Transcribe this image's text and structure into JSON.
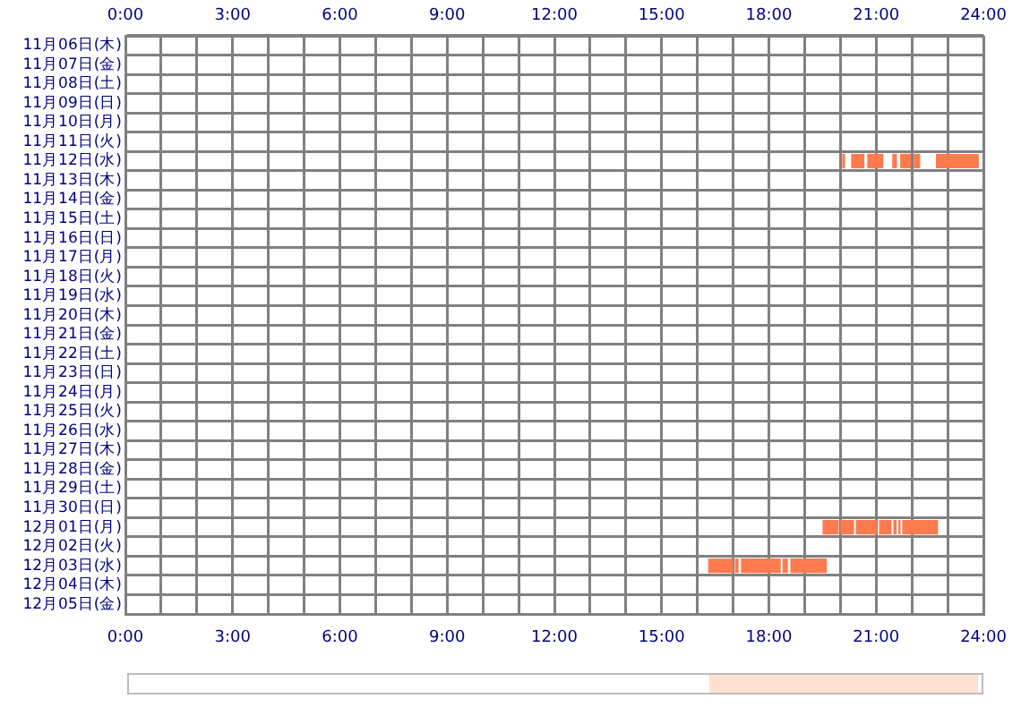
{
  "chart_data": {
    "type": "bar",
    "orientation": "horizontal",
    "grid": true,
    "legend": false,
    "categories": [
      "11月06日(木)",
      "11月07日(金)",
      "11月08日(土)",
      "11月09日(日)",
      "11月10日(月)",
      "11月11日(火)",
      "11月12日(水)",
      "11月13日(木)",
      "11月14日(金)",
      "11月15日(土)",
      "11月16日(日)",
      "11月17日(月)",
      "11月18日(火)",
      "11月19日(水)",
      "11月20日(木)",
      "11月21日(金)",
      "11月22日(土)",
      "11月23日(日)",
      "11月24日(月)",
      "11月25日(火)",
      "11月26日(水)",
      "11月27日(木)",
      "11月28日(金)",
      "11月29日(土)",
      "11月30日(日)",
      "12月01日(月)",
      "12月02日(火)",
      "12月03日(水)",
      "12月04日(木)",
      "12月05日(金)"
    ],
    "xlim": [
      0,
      24
    ],
    "xticks": [
      {
        "value": 0,
        "label": "0:00"
      },
      {
        "value": 1,
        "label": null
      },
      {
        "value": 2,
        "label": null
      },
      {
        "value": 3,
        "label": "3:00"
      },
      {
        "value": 4,
        "label": null
      },
      {
        "value": 5,
        "label": null
      },
      {
        "value": 6,
        "label": "6:00"
      },
      {
        "value": 7,
        "label": null
      },
      {
        "value": 8,
        "label": null
      },
      {
        "value": 9,
        "label": "9:00"
      },
      {
        "value": 10,
        "label": null
      },
      {
        "value": 11,
        "label": null
      },
      {
        "value": 12,
        "label": "12:00"
      },
      {
        "value": 13,
        "label": null
      },
      {
        "value": 14,
        "label": null
      },
      {
        "value": 15,
        "label": "15:00"
      },
      {
        "value": 16,
        "label": null
      },
      {
        "value": 17,
        "label": null
      },
      {
        "value": 18,
        "label": "18:00"
      },
      {
        "value": 19,
        "label": null
      },
      {
        "value": 20,
        "label": null
      },
      {
        "value": 21,
        "label": "21:00"
      },
      {
        "value": 22,
        "label": null
      },
      {
        "value": 23,
        "label": null
      },
      {
        "value": 24,
        "label": "24:00"
      }
    ],
    "x2lim": [
      0,
      24
    ],
    "x2ticks": [
      {
        "value": 0,
        "label": "0:00"
      },
      {
        "value": 3,
        "label": "3:00"
      },
      {
        "value": 6,
        "label": "6:00"
      },
      {
        "value": 9,
        "label": "9:00"
      },
      {
        "value": 12,
        "label": "12:00"
      },
      {
        "value": 15,
        "label": "15:00"
      },
      {
        "value": 18,
        "label": "18:00"
      },
      {
        "value": 21,
        "label": "21:00"
      },
      {
        "value": 24,
        "label": "24:00"
      }
    ],
    "series": [
      {
        "color": "#ff7a4d",
        "base": [
          null,
          null,
          null,
          null,
          null,
          null,
          20.05,
          null,
          null,
          null,
          null,
          null,
          null,
          null,
          null,
          null,
          null,
          null,
          null,
          null,
          null,
          null,
          null,
          null,
          null,
          19.5,
          null,
          16.3,
          null,
          null
        ],
        "values": [
          null,
          null,
          null,
          null,
          null,
          null,
          0.08,
          null,
          null,
          null,
          null,
          null,
          null,
          null,
          null,
          null,
          null,
          null,
          null,
          null,
          null,
          null,
          null,
          null,
          null,
          0.45,
          null,
          0.7,
          null,
          null
        ]
      },
      {
        "color": "#ff7a4d",
        "base": [
          null,
          null,
          null,
          null,
          null,
          null,
          20.3,
          null,
          null,
          null,
          null,
          null,
          null,
          null,
          null,
          null,
          null,
          null,
          null,
          null,
          null,
          null,
          null,
          null,
          null,
          20,
          null,
          17.05,
          null,
          null
        ],
        "values": [
          null,
          null,
          null,
          null,
          null,
          null,
          0.37,
          null,
          null,
          null,
          null,
          null,
          null,
          null,
          null,
          null,
          null,
          null,
          null,
          null,
          null,
          null,
          null,
          null,
          null,
          0.38,
          null,
          0.1,
          null,
          null
        ]
      },
      {
        "color": "#ff7a4d",
        "base": [
          null,
          null,
          null,
          null,
          null,
          null,
          20.75,
          null,
          null,
          null,
          null,
          null,
          null,
          null,
          null,
          null,
          null,
          null,
          null,
          null,
          null,
          null,
          null,
          null,
          null,
          20.43,
          null,
          17.22,
          null,
          null
        ],
        "values": [
          null,
          null,
          null,
          null,
          null,
          null,
          0.45,
          null,
          null,
          null,
          null,
          null,
          null,
          null,
          null,
          null,
          null,
          null,
          null,
          null,
          null,
          null,
          null,
          null,
          null,
          0.59,
          null,
          1.11,
          null,
          null
        ]
      },
      {
        "color": "#ff7a4d",
        "base": [
          null,
          null,
          null,
          null,
          null,
          null,
          21.45,
          null,
          null,
          null,
          null,
          null,
          null,
          null,
          null,
          null,
          null,
          null,
          null,
          null,
          null,
          null,
          null,
          null,
          null,
          21.08,
          null,
          18.38,
          null,
          null
        ],
        "values": [
          null,
          null,
          null,
          null,
          null,
          null,
          0.13,
          null,
          null,
          null,
          null,
          null,
          null,
          null,
          null,
          null,
          null,
          null,
          null,
          null,
          null,
          null,
          null,
          null,
          null,
          0.35,
          null,
          0.15,
          null,
          null
        ]
      },
      {
        "color": "#ff7a4d",
        "base": [
          null,
          null,
          null,
          null,
          null,
          null,
          21.67,
          null,
          null,
          null,
          null,
          null,
          null,
          null,
          null,
          null,
          null,
          null,
          null,
          null,
          null,
          null,
          null,
          null,
          null,
          21.48,
          null,
          18.6,
          null,
          null
        ],
        "values": [
          null,
          null,
          null,
          null,
          null,
          null,
          0.3,
          null,
          null,
          null,
          null,
          null,
          null,
          null,
          null,
          null,
          null,
          null,
          null,
          null,
          null,
          null,
          null,
          null,
          null,
          0.09,
          null,
          1.02,
          null,
          null
        ]
      },
      {
        "color": "#ff7a4d",
        "base": [
          null,
          null,
          null,
          null,
          null,
          null,
          22.05,
          null,
          null,
          null,
          null,
          null,
          null,
          null,
          null,
          null,
          null,
          null,
          null,
          null,
          null,
          null,
          null,
          null,
          null,
          21.62,
          null,
          null,
          null,
          null
        ],
        "values": [
          null,
          null,
          null,
          null,
          null,
          null,
          0.18,
          null,
          null,
          null,
          null,
          null,
          null,
          null,
          null,
          null,
          null,
          null,
          null,
          null,
          null,
          null,
          null,
          null,
          null,
          0.06,
          null,
          null,
          null,
          null
        ]
      },
      {
        "color": "#ff7a4d",
        "base": [
          null,
          null,
          null,
          null,
          null,
          null,
          22.67,
          null,
          null,
          null,
          null,
          null,
          null,
          null,
          null,
          null,
          null,
          null,
          null,
          null,
          null,
          null,
          null,
          null,
          null,
          21.73,
          null,
          null,
          null,
          null
        ],
        "values": [
          null,
          null,
          null,
          null,
          null,
          null,
          1.2,
          null,
          null,
          null,
          null,
          null,
          null,
          null,
          null,
          null,
          null,
          null,
          null,
          null,
          null,
          null,
          null,
          null,
          null,
          1.0,
          null,
          null,
          null,
          null
        ]
      }
    ]
  }
}
